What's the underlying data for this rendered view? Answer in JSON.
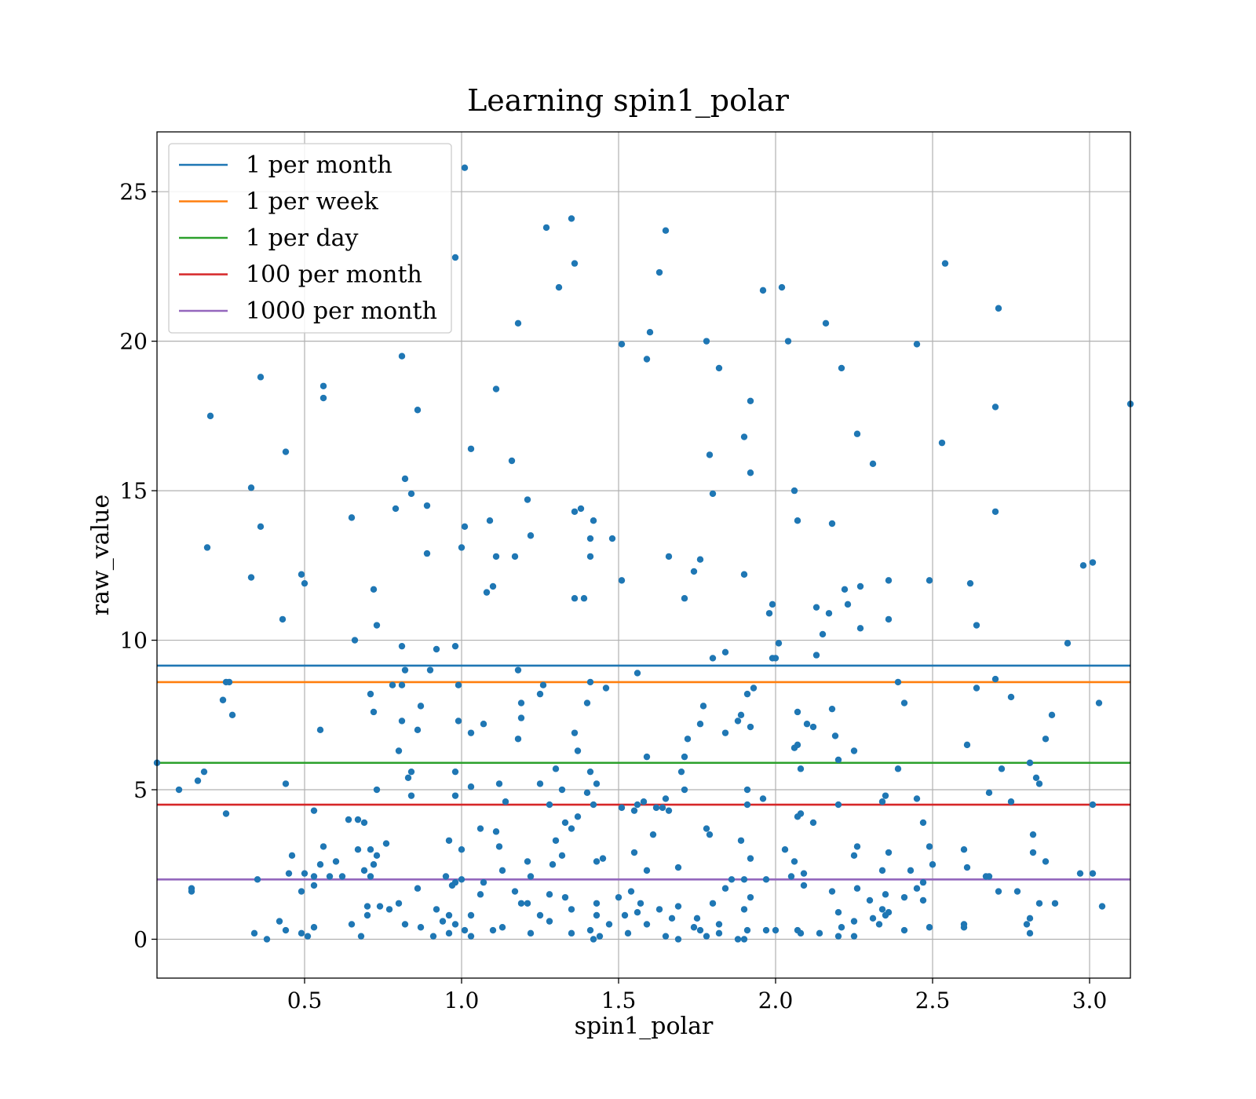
{
  "chart_data": {
    "type": "scatter",
    "title": "Learning spin1_polar",
    "xlabel": "spin1_polar",
    "ylabel": "raw_value",
    "xlim": [
      0.03,
      3.13
    ],
    "ylim": [
      -1.3,
      27.0
    ],
    "xticks": [
      0.5,
      1.0,
      1.5,
      2.0,
      2.5,
      3.0
    ],
    "xtick_labels": [
      "0.5",
      "1.0",
      "1.5",
      "2.0",
      "2.5",
      "3.0"
    ],
    "yticks": [
      0,
      5,
      10,
      15,
      20,
      25
    ],
    "ytick_labels": [
      "0",
      "5",
      "10",
      "15",
      "20",
      "25"
    ],
    "grid": true,
    "legend_position": "top-left",
    "point_color": "#1f77b4",
    "hlines": [
      {
        "name": "1 per month",
        "y": 9.15,
        "color": "#1f77b4"
      },
      {
        "name": "1 per week",
        "y": 8.6,
        "color": "#ff7f0e"
      },
      {
        "name": "1 per day",
        "y": 5.9,
        "color": "#2ca02c"
      },
      {
        "name": "100 per month",
        "y": 4.5,
        "color": "#d62728"
      },
      {
        "name": "1000 per month",
        "y": 2.0,
        "color": "#9467bd"
      }
    ],
    "points": [
      [
        1.01,
        25.8
      ],
      [
        1.35,
        24.1
      ],
      [
        1.27,
        23.8
      ],
      [
        1.65,
        23.7
      ],
      [
        0.98,
        22.8
      ],
      [
        1.36,
        22.6
      ],
      [
        2.54,
        22.6
      ],
      [
        1.63,
        22.3
      ],
      [
        1.31,
        21.8
      ],
      [
        1.96,
        21.7
      ],
      [
        2.02,
        21.8
      ],
      [
        2.71,
        21.1
      ],
      [
        1.18,
        20.6
      ],
      [
        2.16,
        20.6
      ],
      [
        1.6,
        20.3
      ],
      [
        1.78,
        20.0
      ],
      [
        2.04,
        20.0
      ],
      [
        1.51,
        19.9
      ],
      [
        2.45,
        19.9
      ],
      [
        0.81,
        19.5
      ],
      [
        1.59,
        19.4
      ],
      [
        2.21,
        19.1
      ],
      [
        1.82,
        19.1
      ],
      [
        0.36,
        18.8
      ],
      [
        0.56,
        18.5
      ],
      [
        1.11,
        18.4
      ],
      [
        0.56,
        18.1
      ],
      [
        1.92,
        18.0
      ],
      [
        3.13,
        17.9
      ],
      [
        2.7,
        17.8
      ],
      [
        0.86,
        17.7
      ],
      [
        0.2,
        17.5
      ],
      [
        1.9,
        16.8
      ],
      [
        2.26,
        16.9
      ],
      [
        2.53,
        16.6
      ],
      [
        1.03,
        16.4
      ],
      [
        0.44,
        16.3
      ],
      [
        1.79,
        16.2
      ],
      [
        1.16,
        16.0
      ],
      [
        2.31,
        15.9
      ],
      [
        1.92,
        15.6
      ],
      [
        0.82,
        15.4
      ],
      [
        0.33,
        15.1
      ],
      [
        2.06,
        15.0
      ],
      [
        0.84,
        14.9
      ],
      [
        1.8,
        14.9
      ],
      [
        1.21,
        14.7
      ],
      [
        0.89,
        14.5
      ],
      [
        0.79,
        14.4
      ],
      [
        1.38,
        14.4
      ],
      [
        1.36,
        14.3
      ],
      [
        2.7,
        14.3
      ],
      [
        0.65,
        14.1
      ],
      [
        1.09,
        14.0
      ],
      [
        1.42,
        14.0
      ],
      [
        2.18,
        13.9
      ],
      [
        2.07,
        14.0
      ],
      [
        1.01,
        13.8
      ],
      [
        0.36,
        13.8
      ],
      [
        1.22,
        13.5
      ],
      [
        1.41,
        13.4
      ],
      [
        1.48,
        13.4
      ],
      [
        0.19,
        13.1
      ],
      [
        1.0,
        13.1
      ],
      [
        0.89,
        12.9
      ],
      [
        1.66,
        12.8
      ],
      [
        1.11,
        12.8
      ],
      [
        1.17,
        12.8
      ],
      [
        1.76,
        12.7
      ],
      [
        1.41,
        12.8
      ],
      [
        3.01,
        12.6
      ],
      [
        2.98,
        12.5
      ],
      [
        1.74,
        12.3
      ],
      [
        1.9,
        12.2
      ],
      [
        0.49,
        12.2
      ],
      [
        0.33,
        12.1
      ],
      [
        1.51,
        12.0
      ],
      [
        2.36,
        12.0
      ],
      [
        2.49,
        12.0
      ],
      [
        0.5,
        11.9
      ],
      [
        2.62,
        11.9
      ],
      [
        1.1,
        11.8
      ],
      [
        2.27,
        11.8
      ],
      [
        2.22,
        11.7
      ],
      [
        0.72,
        11.7
      ],
      [
        1.08,
        11.6
      ],
      [
        1.39,
        11.4
      ],
      [
        1.36,
        11.4
      ],
      [
        1.71,
        11.4
      ],
      [
        1.99,
        11.2
      ],
      [
        2.23,
        11.2
      ],
      [
        2.13,
        11.1
      ],
      [
        1.98,
        10.9
      ],
      [
        2.17,
        10.9
      ],
      [
        0.43,
        10.7
      ],
      [
        2.36,
        10.7
      ],
      [
        0.73,
        10.5
      ],
      [
        2.64,
        10.5
      ],
      [
        2.27,
        10.4
      ],
      [
        2.15,
        10.2
      ],
      [
        0.66,
        10.0
      ],
      [
        2.01,
        9.9
      ],
      [
        2.93,
        9.9
      ],
      [
        0.81,
        9.8
      ],
      [
        0.98,
        9.8
      ],
      [
        0.92,
        9.7
      ],
      [
        1.84,
        9.6
      ],
      [
        2.13,
        9.5
      ],
      [
        1.8,
        9.4
      ],
      [
        1.99,
        9.4
      ],
      [
        2.0,
        9.4
      ],
      [
        0.82,
        9.0
      ],
      [
        0.9,
        9.0
      ],
      [
        1.18,
        9.0
      ],
      [
        1.56,
        8.9
      ],
      [
        2.7,
        8.7
      ],
      [
        0.25,
        8.6
      ],
      [
        0.26,
        8.6
      ],
      [
        1.41,
        8.6
      ],
      [
        2.39,
        8.6
      ],
      [
        0.99,
        8.5
      ],
      [
        0.78,
        8.5
      ],
      [
        0.81,
        8.5
      ],
      [
        1.26,
        8.5
      ],
      [
        1.46,
        8.4
      ],
      [
        1.93,
        8.4
      ],
      [
        2.64,
        8.4
      ],
      [
        0.71,
        8.2
      ],
      [
        1.25,
        8.2
      ],
      [
        1.91,
        8.2
      ],
      [
        2.75,
        8.1
      ],
      [
        0.24,
        8.0
      ],
      [
        1.19,
        7.9
      ],
      [
        2.41,
        7.9
      ],
      [
        3.03,
        7.9
      ],
      [
        1.4,
        7.9
      ],
      [
        1.77,
        7.8
      ],
      [
        0.87,
        7.8
      ],
      [
        0.72,
        7.6
      ],
      [
        2.07,
        7.6
      ],
      [
        2.18,
        7.7
      ],
      [
        2.88,
        7.5
      ],
      [
        0.27,
        7.5
      ],
      [
        1.89,
        7.5
      ],
      [
        0.81,
        7.3
      ],
      [
        0.99,
        7.3
      ],
      [
        1.19,
        7.4
      ],
      [
        1.88,
        7.3
      ],
      [
        2.1,
        7.2
      ],
      [
        1.07,
        7.2
      ],
      [
        1.76,
        7.2
      ],
      [
        1.92,
        7.1
      ],
      [
        2.12,
        7.1
      ],
      [
        0.55,
        7.0
      ],
      [
        0.86,
        7.0
      ],
      [
        1.03,
        6.9
      ],
      [
        1.84,
        6.9
      ],
      [
        1.36,
        6.9
      ],
      [
        1.72,
        6.7
      ],
      [
        2.19,
        6.8
      ],
      [
        2.86,
        6.7
      ],
      [
        1.18,
        6.7
      ],
      [
        2.61,
        6.5
      ],
      [
        2.07,
        6.5
      ],
      [
        2.06,
        6.4
      ],
      [
        2.25,
        6.3
      ],
      [
        0.8,
        6.3
      ],
      [
        1.37,
        6.3
      ],
      [
        1.59,
        6.1
      ],
      [
        1.71,
        6.1
      ],
      [
        2.2,
        6.0
      ],
      [
        0.03,
        5.9
      ],
      [
        2.81,
        5.9
      ],
      [
        2.08,
        5.7
      ],
      [
        2.39,
        5.7
      ],
      [
        2.72,
        5.7
      ],
      [
        1.3,
        5.7
      ],
      [
        0.98,
        5.6
      ],
      [
        0.84,
        5.6
      ],
      [
        1.7,
        5.6
      ],
      [
        0.18,
        5.6
      ],
      [
        1.41,
        5.6
      ],
      [
        0.83,
        5.4
      ],
      [
        2.83,
        5.4
      ],
      [
        0.16,
        5.3
      ],
      [
        1.25,
        5.2
      ],
      [
        1.12,
        5.2
      ],
      [
        2.84,
        5.2
      ],
      [
        0.44,
        5.2
      ],
      [
        1.43,
        5.2
      ],
      [
        1.03,
        5.1
      ],
      [
        1.91,
        5.0
      ],
      [
        0.73,
        5.0
      ],
      [
        0.1,
        5.0
      ],
      [
        1.32,
        5.0
      ],
      [
        1.4,
        4.9
      ],
      [
        1.71,
        5.0
      ],
      [
        2.68,
        4.9
      ],
      [
        0.84,
        4.8
      ],
      [
        0.98,
        4.8
      ],
      [
        2.35,
        4.8
      ],
      [
        2.45,
        4.7
      ],
      [
        1.65,
        4.7
      ],
      [
        1.96,
        4.7
      ],
      [
        1.14,
        4.6
      ],
      [
        1.58,
        4.6
      ],
      [
        2.75,
        4.6
      ],
      [
        2.34,
        4.6
      ],
      [
        3.01,
        4.5
      ],
      [
        1.56,
        4.5
      ],
      [
        1.91,
        4.5
      ],
      [
        2.2,
        4.5
      ],
      [
        1.28,
        4.5
      ],
      [
        1.42,
        4.5
      ],
      [
        1.62,
        4.4
      ],
      [
        1.64,
        4.4
      ],
      [
        1.66,
        4.3
      ],
      [
        0.53,
        4.3
      ],
      [
        1.55,
        4.3
      ],
      [
        0.25,
        4.2
      ],
      [
        2.08,
        4.2
      ],
      [
        1.51,
        4.4
      ],
      [
        2.07,
        4.1
      ],
      [
        1.37,
        4.1
      ],
      [
        0.67,
        4.0
      ],
      [
        0.64,
        4.0
      ],
      [
        0.69,
        3.9
      ],
      [
        2.12,
        3.9
      ],
      [
        1.33,
        3.9
      ],
      [
        2.47,
        3.9
      ],
      [
        1.06,
        3.7
      ],
      [
        1.35,
        3.7
      ],
      [
        1.78,
        3.7
      ],
      [
        1.11,
        3.6
      ],
      [
        1.79,
        3.5
      ],
      [
        1.61,
        3.5
      ],
      [
        2.82,
        3.5
      ],
      [
        1.3,
        3.3
      ],
      [
        0.96,
        3.3
      ],
      [
        1.89,
        3.3
      ],
      [
        1.12,
        3.1
      ],
      [
        0.56,
        3.1
      ],
      [
        0.76,
        3.2
      ],
      [
        2.26,
        3.1
      ],
      [
        2.49,
        3.1
      ],
      [
        2.6,
        3.0
      ],
      [
        2.03,
        3.0
      ],
      [
        0.71,
        3.0
      ],
      [
        0.67,
        3.0
      ],
      [
        1.0,
        3.0
      ],
      [
        2.36,
        2.9
      ],
      [
        0.73,
        2.8
      ],
      [
        0.46,
        2.8
      ],
      [
        1.55,
        2.9
      ],
      [
        1.32,
        2.8
      ],
      [
        2.25,
        2.8
      ],
      [
        1.45,
        2.7
      ],
      [
        2.82,
        2.9
      ],
      [
        1.21,
        2.6
      ],
      [
        1.92,
        2.7
      ],
      [
        2.06,
        2.6
      ],
      [
        2.86,
        2.6
      ],
      [
        0.6,
        2.6
      ],
      [
        1.43,
        2.6
      ],
      [
        0.72,
        2.5
      ],
      [
        0.55,
        2.5
      ],
      [
        1.29,
        2.5
      ],
      [
        2.5,
        2.5
      ],
      [
        2.61,
        2.4
      ],
      [
        1.69,
        2.4
      ],
      [
        0.69,
        2.3
      ],
      [
        1.59,
        2.3
      ],
      [
        1.13,
        2.3
      ],
      [
        2.34,
        2.3
      ],
      [
        2.43,
        2.3
      ],
      [
        3.01,
        2.2
      ],
      [
        0.5,
        2.2
      ],
      [
        0.45,
        2.2
      ],
      [
        2.09,
        2.2
      ],
      [
        0.62,
        2.1
      ],
      [
        0.71,
        2.1
      ],
      [
        0.53,
        2.1
      ],
      [
        0.58,
        2.1
      ],
      [
        1.22,
        2.1
      ],
      [
        2.67,
        2.1
      ],
      [
        2.68,
        2.1
      ],
      [
        2.97,
        2.2
      ],
      [
        0.95,
        2.1
      ],
      [
        0.35,
        2.0
      ],
      [
        1.0,
        2.0
      ],
      [
        2.05,
        2.1
      ],
      [
        1.86,
        2.0
      ],
      [
        1.9,
        2.0
      ],
      [
        1.97,
        2.0
      ],
      [
        0.98,
        1.9
      ],
      [
        0.97,
        1.8
      ],
      [
        1.07,
        1.9
      ],
      [
        2.09,
        1.8
      ],
      [
        0.53,
        1.8
      ],
      [
        1.84,
        1.7
      ],
      [
        2.45,
        1.7
      ],
      [
        2.47,
        1.9
      ],
      [
        2.26,
        1.7
      ],
      [
        0.86,
        1.7
      ],
      [
        1.17,
        1.6
      ],
      [
        0.14,
        1.7
      ],
      [
        0.14,
        1.6
      ],
      [
        2.18,
        1.6
      ],
      [
        2.71,
        1.6
      ],
      [
        2.77,
        1.6
      ],
      [
        0.49,
        1.6
      ],
      [
        1.54,
        1.6
      ],
      [
        1.06,
        1.5
      ],
      [
        1.28,
        1.5
      ],
      [
        2.35,
        1.5
      ],
      [
        2.41,
        1.4
      ],
      [
        1.92,
        1.4
      ],
      [
        1.33,
        1.4
      ],
      [
        1.5,
        1.4
      ],
      [
        2.3,
        1.3
      ],
      [
        2.47,
        1.3
      ],
      [
        1.8,
        1.2
      ],
      [
        2.84,
        1.2
      ],
      [
        2.89,
        1.2
      ],
      [
        0.8,
        1.2
      ],
      [
        1.19,
        1.2
      ],
      [
        1.43,
        1.2
      ],
      [
        1.57,
        1.2
      ],
      [
        0.74,
        1.1
      ],
      [
        1.21,
        1.2
      ],
      [
        1.69,
        1.1
      ],
      [
        3.04,
        1.1
      ],
      [
        0.7,
        1.1
      ],
      [
        2.34,
        1.0
      ],
      [
        0.92,
        1.0
      ],
      [
        1.35,
        1.0
      ],
      [
        1.9,
        1.0
      ],
      [
        0.77,
        1.0
      ],
      [
        1.63,
        1.0
      ],
      [
        2.2,
        0.9
      ],
      [
        2.35,
        0.8
      ],
      [
        2.36,
        0.9
      ],
      [
        1.03,
        0.8
      ],
      [
        0.7,
        0.8
      ],
      [
        1.25,
        0.8
      ],
      [
        0.96,
        0.8
      ],
      [
        1.43,
        0.8
      ],
      [
        1.52,
        0.8
      ],
      [
        1.67,
        0.7
      ],
      [
        1.75,
        0.7
      ],
      [
        2.31,
        0.7
      ],
      [
        2.81,
        0.7
      ],
      [
        2.25,
        0.6
      ],
      [
        0.42,
        0.6
      ],
      [
        0.94,
        0.6
      ],
      [
        1.59,
        0.5
      ],
      [
        1.82,
        0.5
      ],
      [
        2.33,
        0.5
      ],
      [
        2.6,
        0.5
      ],
      [
        2.8,
        0.5
      ],
      [
        0.65,
        0.5
      ],
      [
        0.98,
        0.5
      ],
      [
        0.82,
        0.5
      ],
      [
        0.53,
        0.4
      ],
      [
        1.13,
        0.4
      ],
      [
        2.21,
        0.4
      ],
      [
        2.49,
        0.4
      ],
      [
        2.6,
        0.4
      ],
      [
        0.87,
        0.4
      ],
      [
        1.76,
        0.3
      ],
      [
        2.07,
        0.3
      ],
      [
        1.97,
        0.3
      ],
      [
        2.0,
        0.3
      ],
      [
        2.41,
        0.3
      ],
      [
        1.91,
        0.3
      ],
      [
        1.01,
        0.3
      ],
      [
        1.41,
        0.3
      ],
      [
        0.44,
        0.3
      ],
      [
        1.1,
        0.3
      ],
      [
        1.35,
        0.2
      ],
      [
        1.82,
        0.2
      ],
      [
        2.08,
        0.2
      ],
      [
        2.14,
        0.2
      ],
      [
        1.22,
        0.2
      ],
      [
        2.81,
        0.2
      ],
      [
        0.34,
        0.2
      ],
      [
        0.49,
        0.2
      ],
      [
        0.96,
        0.2
      ],
      [
        1.53,
        0.2
      ],
      [
        1.03,
        0.1
      ],
      [
        1.44,
        0.1
      ],
      [
        1.65,
        0.1
      ],
      [
        2.2,
        0.1
      ],
      [
        2.25,
        0.1
      ],
      [
        0.51,
        0.1
      ],
      [
        0.68,
        0.1
      ],
      [
        0.91,
        0.1
      ],
      [
        1.78,
        0.1
      ],
      [
        1.42,
        0.0
      ],
      [
        1.69,
        0.0
      ],
      [
        1.88,
        0.0
      ],
      [
        1.9,
        0.0
      ],
      [
        0.38,
        0.0
      ],
      [
        1.28,
        0.6
      ],
      [
        1.56,
        0.9
      ],
      [
        1.47,
        0.5
      ],
      [
        1.74,
        0.4
      ]
    ]
  }
}
